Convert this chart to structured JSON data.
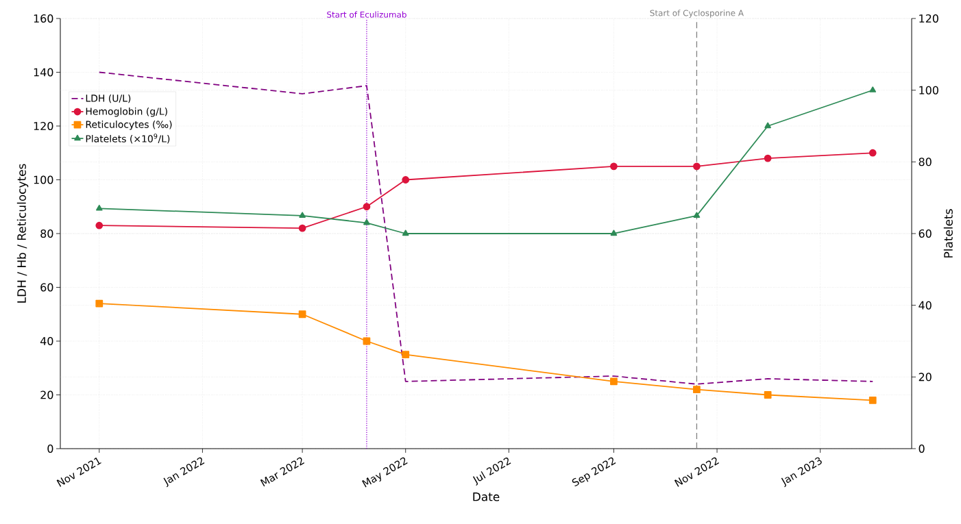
{
  "chart_data": {
    "type": "line",
    "xlabel": "Date",
    "ylabel": "LDH / Hb / Reticulocytes",
    "y2label": "Platelets",
    "x": [
      "2021-11-01",
      "2022-03-01",
      "2022-04-08",
      "2022-05-01",
      "2022-09-01",
      "2022-10-20",
      "2022-12-01",
      "2023-02-01"
    ],
    "series": [
      {
        "name": "LDH (U/L)",
        "color": "#800080",
        "line_style": "dashed",
        "marker": "none",
        "values": [
          140,
          132,
          135,
          25,
          27,
          24,
          26,
          25
        ]
      },
      {
        "name": "Hemoglobin (g/L)",
        "color": "#dc143c",
        "line_style": "solid",
        "marker": "circle",
        "values": [
          83,
          82,
          90,
          100,
          105,
          105,
          108,
          110
        ]
      },
      {
        "name": "Reticulocytes (‰)",
        "color": "#ff8c00",
        "line_style": "solid",
        "marker": "square",
        "values": [
          54,
          50,
          40,
          35,
          25,
          22,
          20,
          18
        ]
      },
      {
        "name": "Platelets (×10$^{9}$/L)",
        "color": "#2e8b57",
        "line_style": "solid",
        "marker": "triangle",
        "axis": "y2",
        "values": [
          67,
          65,
          63,
          60,
          60,
          65,
          90,
          100
        ]
      }
    ],
    "xlim": [
      "2021-10-09",
      "2023-02-24"
    ],
    "xticks": [
      {
        "value": "2021-11-01",
        "label": "Nov 2021"
      },
      {
        "value": "2022-01-01",
        "label": "Jan 2022"
      },
      {
        "value": "2022-03-01",
        "label": "Mar 2022"
      },
      {
        "value": "2022-05-01",
        "label": "May 2022"
      },
      {
        "value": "2022-07-01",
        "label": "Jul 2022"
      },
      {
        "value": "2022-09-01",
        "label": "Sep 2022"
      },
      {
        "value": "2022-11-01",
        "label": "Nov 2022"
      },
      {
        "value": "2023-01-01",
        "label": "Jan 2023"
      }
    ],
    "ylim": [
      0,
      160
    ],
    "yticks": [
      0,
      20,
      40,
      60,
      80,
      100,
      120,
      140,
      160
    ],
    "y2lim": [
      0,
      120
    ],
    "y2ticks": [
      0,
      20,
      40,
      60,
      80,
      100,
      120
    ],
    "ref_lines": [
      {
        "axis": "x",
        "value": "2022-04-08",
        "label": "Start of Eculizumab",
        "color": "#9400d3",
        "line_style": "dotted"
      },
      {
        "axis": "x",
        "value": "2022-10-20",
        "label": "Start of Cyclosporine A",
        "color": "#808080",
        "line_style": "dashed"
      }
    ],
    "grid": true,
    "legend": "upper left"
  }
}
